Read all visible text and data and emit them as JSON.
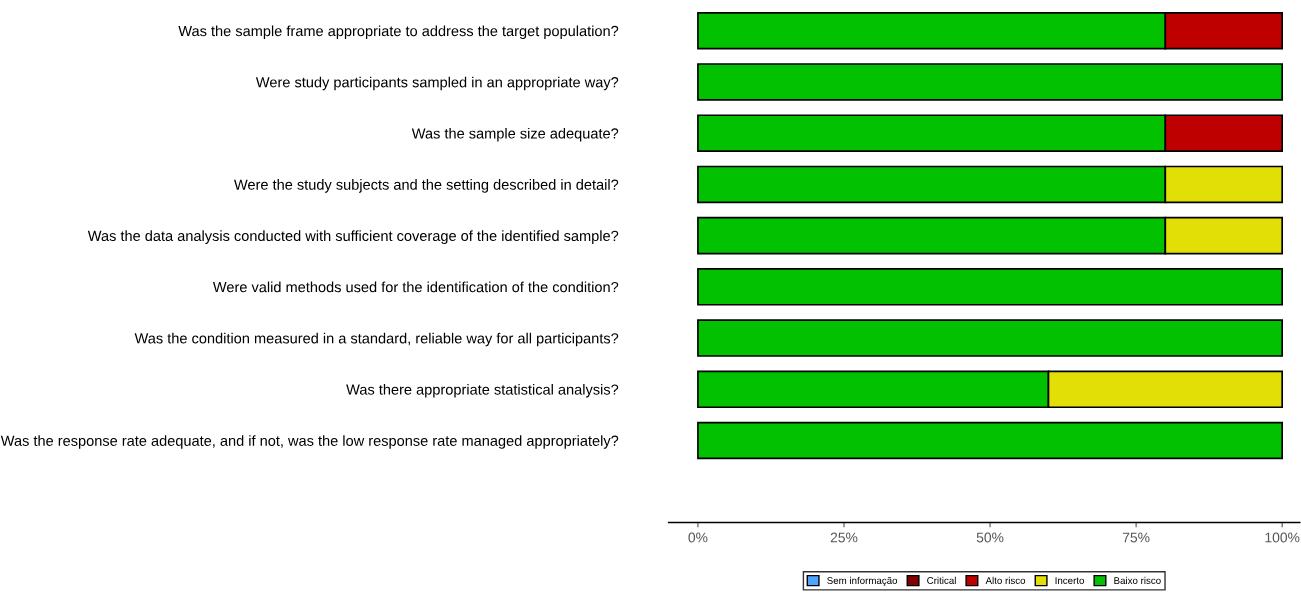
{
  "chart_data": {
    "type": "bar",
    "orientation": "horizontal",
    "stacked": true,
    "categories": [
      "Was the sample frame appropriate to address the target population?",
      "Were study participants sampled in an appropriate way?",
      "Was the sample size adequate?",
      "Were the study subjects and the setting described in detail?",
      "Was the data analysis conducted with sufficient coverage of the identified sample?",
      "Were valid methods used for the identification of the condition?",
      "Was the condition measured in a standard, reliable way for all participants?",
      "Was there appropriate statistical analysis?",
      "Was the response rate adequate, and if not, was the low response rate managed appropriately?"
    ],
    "series": [
      {
        "name": "Baixo risco",
        "color": "#02c100",
        "values": [
          80,
          100,
          80,
          80,
          80,
          100,
          100,
          60,
          100
        ]
      },
      {
        "name": "Incerto",
        "color": "#e2df07",
        "values": [
          null,
          null,
          null,
          20,
          20,
          null,
          null,
          40,
          null
        ]
      },
      {
        "name": "Alto risco",
        "color": "#bf0000",
        "values": [
          20,
          null,
          20,
          null,
          null,
          null,
          null,
          null,
          null
        ]
      },
      {
        "name": "Critical",
        "color": "#820000",
        "values": [
          null,
          null,
          null,
          null,
          null,
          null,
          null,
          null,
          null
        ]
      },
      {
        "name": "Sem informação",
        "color": "#4eA5ff",
        "values": [
          null,
          null,
          null,
          null,
          null,
          null,
          null,
          null,
          null
        ]
      }
    ],
    "xlim": [
      -5,
      103
    ],
    "xticks": [
      {
        "value": 0,
        "label": "0%"
      },
      {
        "value": 25,
        "label": "25%"
      },
      {
        "value": 50,
        "label": "50%"
      },
      {
        "value": 75,
        "label": "75%"
      },
      {
        "value": 100,
        "label": "100%"
      }
    ],
    "grid": false,
    "legend": "bottom"
  }
}
